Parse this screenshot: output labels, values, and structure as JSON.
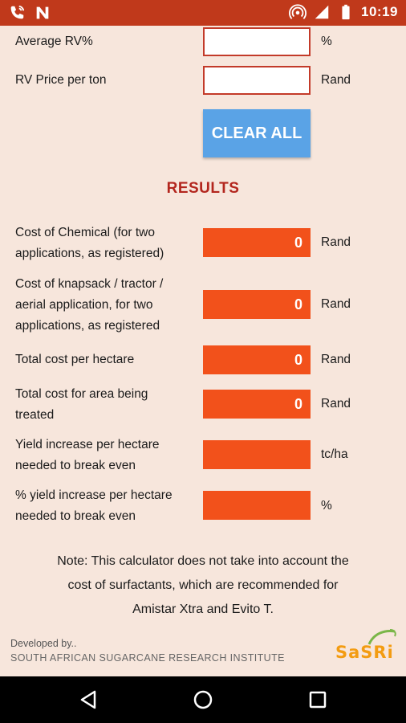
{
  "status_bar": {
    "time": "10:19",
    "left_icons": [
      "wifi-calling-icon",
      "notification-n-icon"
    ],
    "right_icons": [
      "hotspot-icon",
      "signal-icon",
      "battery-icon"
    ],
    "color": "#c0391b"
  },
  "inputs": [
    {
      "label": "Average RV%",
      "unit": "%",
      "value": ""
    },
    {
      "label": "RV Price per ton",
      "unit": "Rand",
      "value": ""
    }
  ],
  "clear_button": {
    "label": "CLEAR ALL"
  },
  "results": {
    "title": "RESULTS",
    "rows": [
      {
        "label_lines": [
          "Cost of Chemical (for two",
          "applications, as registered)"
        ],
        "value": "0",
        "unit": "Rand"
      },
      {
        "label_lines": [
          "Cost of knapsack / tractor /",
          "aerial application, for two",
          "applications, as registered"
        ],
        "value": "0",
        "unit": "Rand"
      },
      {
        "label_lines": [
          "Total cost per hectare"
        ],
        "value": "0",
        "unit": "Rand"
      },
      {
        "label_lines": [
          "Total cost for area being",
          "treated"
        ],
        "value": "0",
        "unit": "Rand"
      },
      {
        "label_lines": [
          "Yield increase per hectare",
          "needed to break even"
        ],
        "value": "",
        "unit": "tc/ha"
      },
      {
        "label_lines": [
          "% yield increase per hectare",
          "needed to break even"
        ],
        "value": "",
        "unit": "%"
      }
    ]
  },
  "note": {
    "lines": [
      "Note: This calculator does not take into account  the",
      "cost of surfactants, which are recommended for",
      "Amistar Xtra and Evito T."
    ]
  },
  "footer": {
    "developed_by": "Developed by..",
    "organization": "SOUTH AFRICAN SUGARCANE RESEARCH INSTITUTE",
    "logo_text": "SaSRi"
  },
  "colors": {
    "background": "#f7e6dc",
    "accent": "#f2511b",
    "button": "#5aa3e6",
    "results_title": "#b3261e"
  }
}
